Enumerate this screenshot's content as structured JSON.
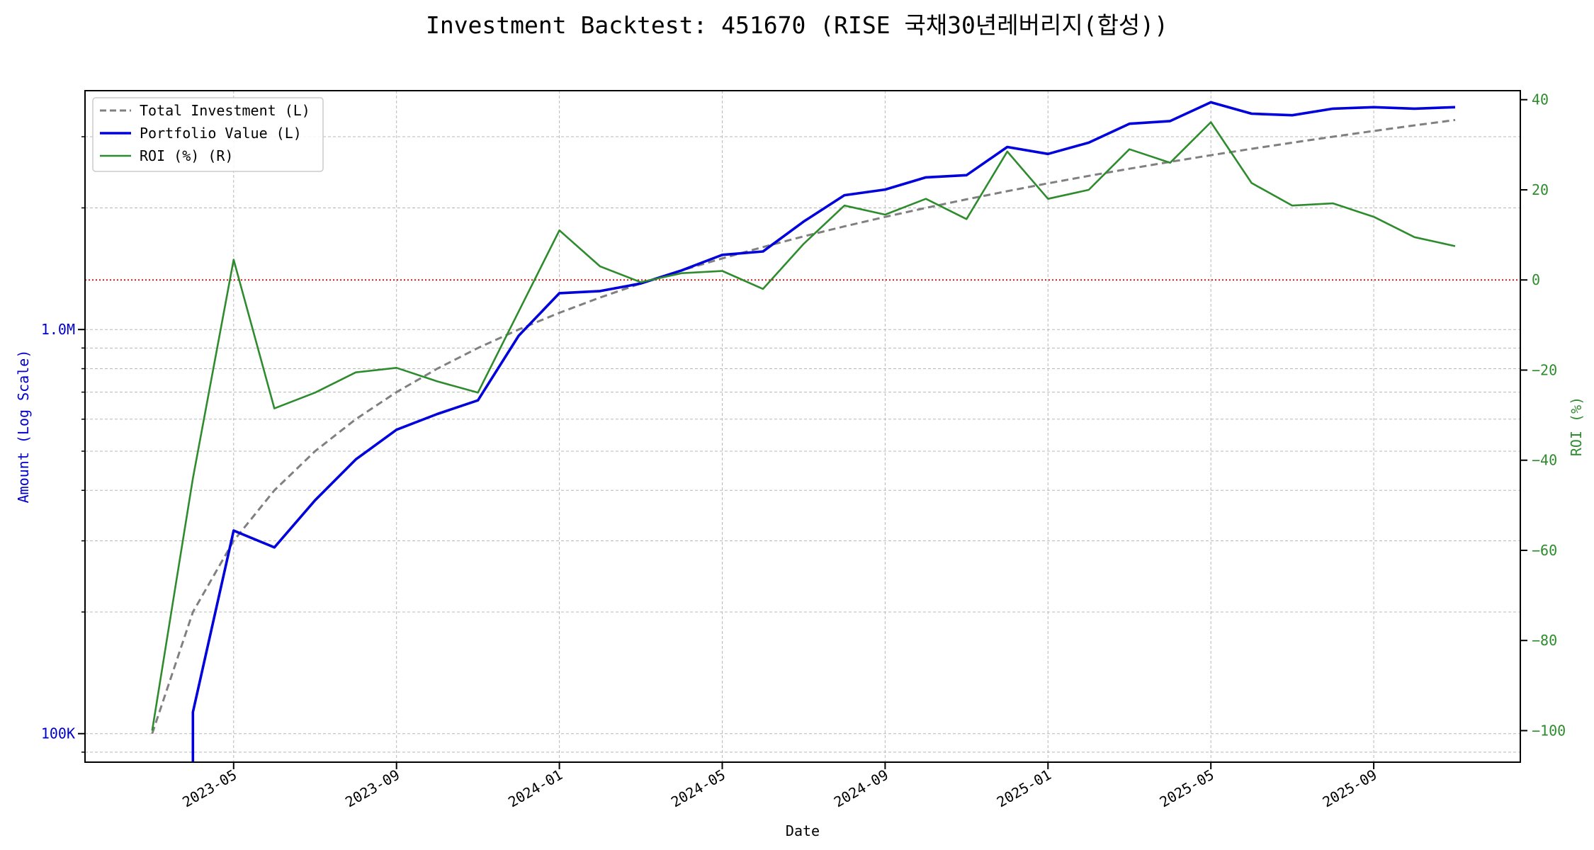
{
  "chart_data": {
    "type": "line",
    "title": "Investment Backtest: 451670 (RISE 국채30년레버리지(합성))",
    "xlabel": "Date",
    "ylabel_left": "Amount (Log Scale)",
    "ylabel_right": "ROI (%)",
    "x_ticks": [
      "2023-05",
      "2023-09",
      "2024-01",
      "2024-05",
      "2024-09",
      "2025-01",
      "2025-05",
      "2025-09"
    ],
    "y_left_scale": "log",
    "y_left_lim": [
      85000,
      3900000
    ],
    "y_left_ticks": [
      {
        "value": 100000,
        "label": "100K"
      },
      {
        "value": 1000000,
        "label": "1.0M"
      }
    ],
    "y_right_lim": [
      -107,
      42
    ],
    "y_right_ticks": [
      -100,
      -80,
      -60,
      -40,
      -20,
      0,
      20,
      40
    ],
    "grid": true,
    "zero_line": {
      "axis": "right",
      "value": 0,
      "color": "#cc0000"
    },
    "legend_position": "upper-left",
    "x": [
      "2023-03",
      "2023-04",
      "2023-05",
      "2023-06",
      "2023-07",
      "2023-08",
      "2023-09",
      "2023-10",
      "2023-11",
      "2023-12",
      "2024-01",
      "2024-02",
      "2024-03",
      "2024-04",
      "2024-05",
      "2024-06",
      "2024-07",
      "2024-08",
      "2024-09",
      "2024-10",
      "2024-11",
      "2024-12",
      "2025-01",
      "2025-02",
      "2025-03",
      "2025-04",
      "2025-05",
      "2025-06",
      "2025-07",
      "2025-08",
      "2025-09",
      "2025-10",
      "2025-11"
    ],
    "series": [
      {
        "name": "Total Investment (L)",
        "axis": "left",
        "color": "#808080",
        "style": "dashed",
        "values": [
          100000,
          200000,
          300000,
          400000,
          500000,
          600000,
          700000,
          800000,
          900000,
          1000000,
          1100000,
          1200000,
          1300000,
          1400000,
          1500000,
          1600000,
          1700000,
          1800000,
          1900000,
          2000000,
          2100000,
          2200000,
          2300000,
          2400000,
          2500000,
          2600000,
          2700000,
          2800000,
          2900000,
          3000000,
          3100000,
          3200000,
          3300000
        ]
      },
      {
        "name": "Portfolio Value (L)",
        "axis": "left",
        "color": "#0000dd",
        "style": "solid",
        "values": [
          null,
          113000,
          318000,
          289000,
          378000,
          477000,
          565000,
          618000,
          668000,
          965000,
          1230000,
          1245000,
          1300000,
          1400000,
          1530000,
          1560000,
          1850000,
          2150000,
          2220000,
          2380000,
          2410000,
          2830000,
          2720000,
          2900000,
          3230000,
          3280000,
          3650000,
          3420000,
          3390000,
          3520000,
          3550000,
          3520000,
          3550000
        ]
      },
      {
        "name": "ROI (%) (R)",
        "axis": "right",
        "color": "#2e8b2e",
        "style": "solid",
        "values": [
          -100,
          -44,
          4.5,
          -28.5,
          -25,
          -20.5,
          -19.5,
          -22.5,
          -25,
          -7,
          11,
          3,
          -0.5,
          1.5,
          2,
          -2,
          8,
          16.5,
          14.5,
          18,
          13.5,
          28.5,
          18,
          20,
          29,
          26,
          35,
          21.5,
          16.5,
          17,
          14,
          9.5,
          7.5
        ]
      }
    ]
  }
}
